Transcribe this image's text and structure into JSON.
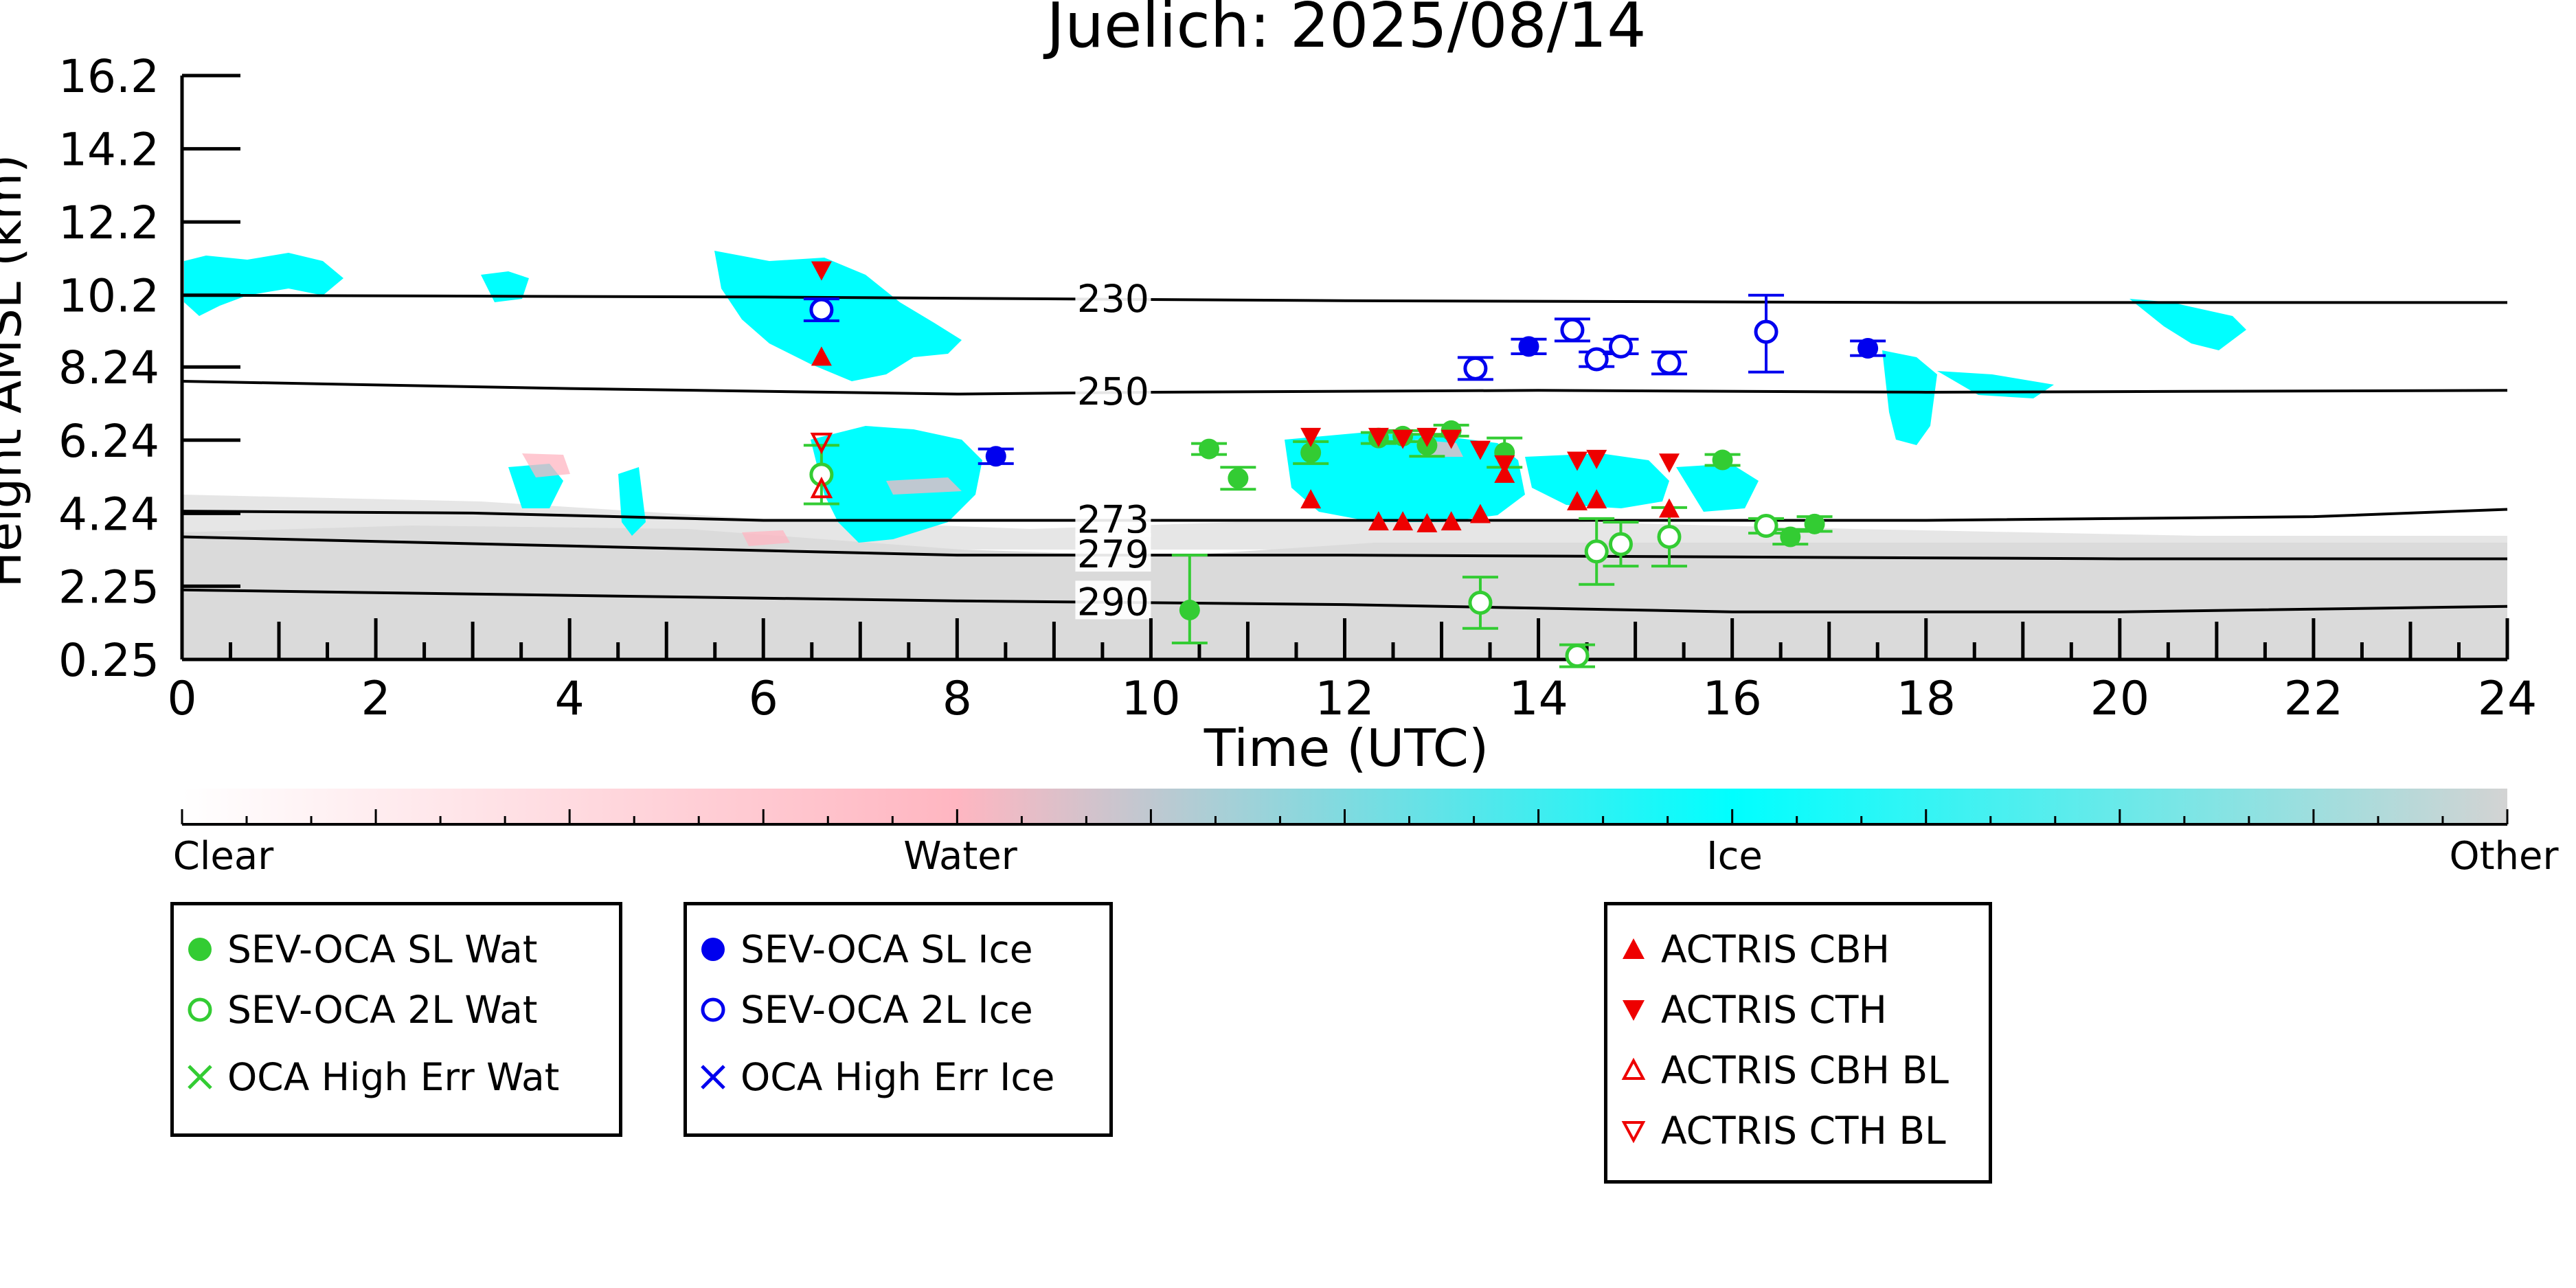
{
  "chart_data": {
    "type": "scatter",
    "title": "Juelich: 2025/08/14",
    "xlabel": "Time (UTC)",
    "ylabel": "Height AMSL (km)",
    "xlim": [
      0,
      24
    ],
    "x_ticks": [
      "0",
      "2",
      "4",
      "6",
      "8",
      "10",
      "12",
      "14",
      "16",
      "18",
      "20",
      "22",
      "24"
    ],
    "y_ticks": [
      "0.25",
      "2.25",
      "4.24",
      "6.24",
      "8.24",
      "10.2",
      "12.2",
      "14.2",
      "16.2"
    ],
    "ylim": [
      0.25,
      16.2
    ],
    "background": "cloud classification image (Clear / Water / Ice / Other)",
    "isotherms": [
      {
        "label": "230",
        "points": [
          [
            0,
            10.2
          ],
          [
            6,
            10.15
          ],
          [
            12,
            10.05
          ],
          [
            18,
            10.0
          ],
          [
            24,
            10.0
          ]
        ]
      },
      {
        "label": "250",
        "points": [
          [
            0,
            7.85
          ],
          [
            4,
            7.65
          ],
          [
            8,
            7.5
          ],
          [
            10,
            7.55
          ],
          [
            14,
            7.6
          ],
          [
            18,
            7.55
          ],
          [
            24,
            7.6
          ]
        ]
      },
      {
        "label": "273",
        "points": [
          [
            0,
            4.3
          ],
          [
            3,
            4.25
          ],
          [
            6,
            4.05
          ],
          [
            10,
            4.05
          ],
          [
            14,
            4.05
          ],
          [
            18,
            4.05
          ],
          [
            22,
            4.15
          ],
          [
            24,
            4.35
          ]
        ]
      },
      {
        "label": "279",
        "points": [
          [
            0,
            3.6
          ],
          [
            4,
            3.35
          ],
          [
            8,
            3.1
          ],
          [
            12,
            3.1
          ],
          [
            16,
            3.05
          ],
          [
            20,
            3.0
          ],
          [
            24,
            3.0
          ]
        ]
      },
      {
        "label": "290",
        "points": [
          [
            0,
            2.15
          ],
          [
            4,
            2.0
          ],
          [
            8,
            1.85
          ],
          [
            12,
            1.75
          ],
          [
            16,
            1.55
          ],
          [
            20,
            1.55
          ],
          [
            24,
            1.7
          ]
        ]
      }
    ],
    "series": [
      {
        "name": "SEV-OCA SL Wat",
        "marker": "filled-circle",
        "color": "#33cc33",
        "points": [
          {
            "x": 10.4,
            "y": 1.6,
            "err_lo": 0.9,
            "err_hi": 1.5
          },
          {
            "x": 10.6,
            "y": 6.0,
            "err": 0.15
          },
          {
            "x": 10.9,
            "y": 5.2,
            "err": 0.3
          },
          {
            "x": 11.65,
            "y": 5.9,
            "err": 0.3
          },
          {
            "x": 12.35,
            "y": 6.3,
            "err": 0.15
          },
          {
            "x": 12.6,
            "y": 6.35,
            "err": 0.15
          },
          {
            "x": 12.85,
            "y": 6.1,
            "err": 0.3
          },
          {
            "x": 13.1,
            "y": 6.5,
            "err": 0.15
          },
          {
            "x": 13.65,
            "y": 5.9,
            "err": 0.4
          },
          {
            "x": 15.9,
            "y": 5.7,
            "err": 0.15
          },
          {
            "x": 16.6,
            "y": 3.6,
            "err": 0.2
          },
          {
            "x": 16.85,
            "y": 3.95,
            "err": 0.2
          }
        ]
      },
      {
        "name": "SEV-OCA 2L Wat",
        "marker": "open-circle",
        "color": "#33cc33",
        "points": [
          {
            "x": 6.6,
            "y": 5.3,
            "err": 0.8
          },
          {
            "x": 13.4,
            "y": 1.8,
            "err": 0.7
          },
          {
            "x": 14.4,
            "y": 0.35,
            "err": 0.3
          },
          {
            "x": 14.6,
            "y": 3.2,
            "err": 0.9
          },
          {
            "x": 14.85,
            "y": 3.4,
            "err": 0.6
          },
          {
            "x": 15.35,
            "y": 3.6,
            "err": 0.8
          },
          {
            "x": 16.35,
            "y": 3.9,
            "err": 0.2
          }
        ]
      },
      {
        "name": "OCA High Err Wat",
        "marker": "x",
        "color": "#33cc33",
        "points": []
      },
      {
        "name": "SEV-OCA SL Ice",
        "marker": "filled-circle",
        "color": "#0000ee",
        "points": [
          {
            "x": 8.4,
            "y": 5.8,
            "err": 0.2
          },
          {
            "x": 13.9,
            "y": 8.8,
            "err": 0.2
          },
          {
            "x": 17.4,
            "y": 8.75,
            "err": 0.2
          }
        ]
      },
      {
        "name": "SEV-OCA 2L Ice",
        "marker": "open-circle",
        "color": "#0000ee",
        "points": [
          {
            "x": 6.6,
            "y": 9.8,
            "err": 0.3
          },
          {
            "x": 13.35,
            "y": 8.2,
            "err": 0.3
          },
          {
            "x": 14.35,
            "y": 9.25,
            "err": 0.3
          },
          {
            "x": 14.6,
            "y": 8.45,
            "err": 0.2
          },
          {
            "x": 14.85,
            "y": 8.8,
            "err": 0.2
          },
          {
            "x": 15.35,
            "y": 8.35,
            "err": 0.3
          },
          {
            "x": 16.35,
            "y": 9.2,
            "err_lo": 1.1,
            "err_hi": 1.0
          }
        ]
      },
      {
        "name": "OCA High Err Ice",
        "marker": "x",
        "color": "#0000ee",
        "points": []
      },
      {
        "name": "ACTRIS CBH",
        "marker": "triangle-up-filled",
        "color": "#ee0000",
        "points": [
          {
            "x": 6.6,
            "y": 8.5
          },
          {
            "x": 11.65,
            "y": 4.6
          },
          {
            "x": 12.35,
            "y": 4.0
          },
          {
            "x": 12.6,
            "y": 4.0
          },
          {
            "x": 12.85,
            "y": 3.95
          },
          {
            "x": 13.1,
            "y": 4.0
          },
          {
            "x": 13.4,
            "y": 4.2
          },
          {
            "x": 13.65,
            "y": 5.3
          },
          {
            "x": 14.4,
            "y": 4.55
          },
          {
            "x": 14.6,
            "y": 4.6
          },
          {
            "x": 15.35,
            "y": 4.35
          }
        ]
      },
      {
        "name": "ACTRIS CTH",
        "marker": "triangle-down-filled",
        "color": "#ee0000",
        "points": [
          {
            "x": 6.6,
            "y": 10.9
          },
          {
            "x": 11.65,
            "y": 6.35
          },
          {
            "x": 12.35,
            "y": 6.35
          },
          {
            "x": 12.6,
            "y": 6.3
          },
          {
            "x": 12.85,
            "y": 6.35
          },
          {
            "x": 13.1,
            "y": 6.3
          },
          {
            "x": 13.4,
            "y": 6.0
          },
          {
            "x": 13.65,
            "y": 5.6
          },
          {
            "x": 14.4,
            "y": 5.7
          },
          {
            "x": 14.6,
            "y": 5.75
          },
          {
            "x": 15.35,
            "y": 5.65
          }
        ]
      },
      {
        "name": "ACTRIS CBH BL",
        "marker": "triangle-up-open",
        "color": "#ee0000",
        "points": [
          {
            "x": 6.6,
            "y": 4.9
          }
        ]
      },
      {
        "name": "ACTRIS CTH BL",
        "marker": "triangle-down-open",
        "color": "#ee0000",
        "points": [
          {
            "x": 6.6,
            "y": 6.2
          }
        ]
      }
    ],
    "colorbar": {
      "labels": [
        "Clear",
        "Water",
        "Ice",
        "Other"
      ],
      "stops": [
        "#ffffff",
        "#ffb6c1",
        "#00ffff",
        "#d3d3d3"
      ]
    },
    "legend_groups": [
      [
        "SEV-OCA SL Wat",
        "SEV-OCA 2L Wat",
        "OCA High Err Wat"
      ],
      [
        "SEV-OCA SL Ice",
        "SEV-OCA 2L Ice",
        "OCA High Err Ice"
      ],
      [
        "ACTRIS CBH",
        "ACTRIS CTH",
        "ACTRIS CBH BL",
        "ACTRIS CTH BL"
      ]
    ]
  }
}
